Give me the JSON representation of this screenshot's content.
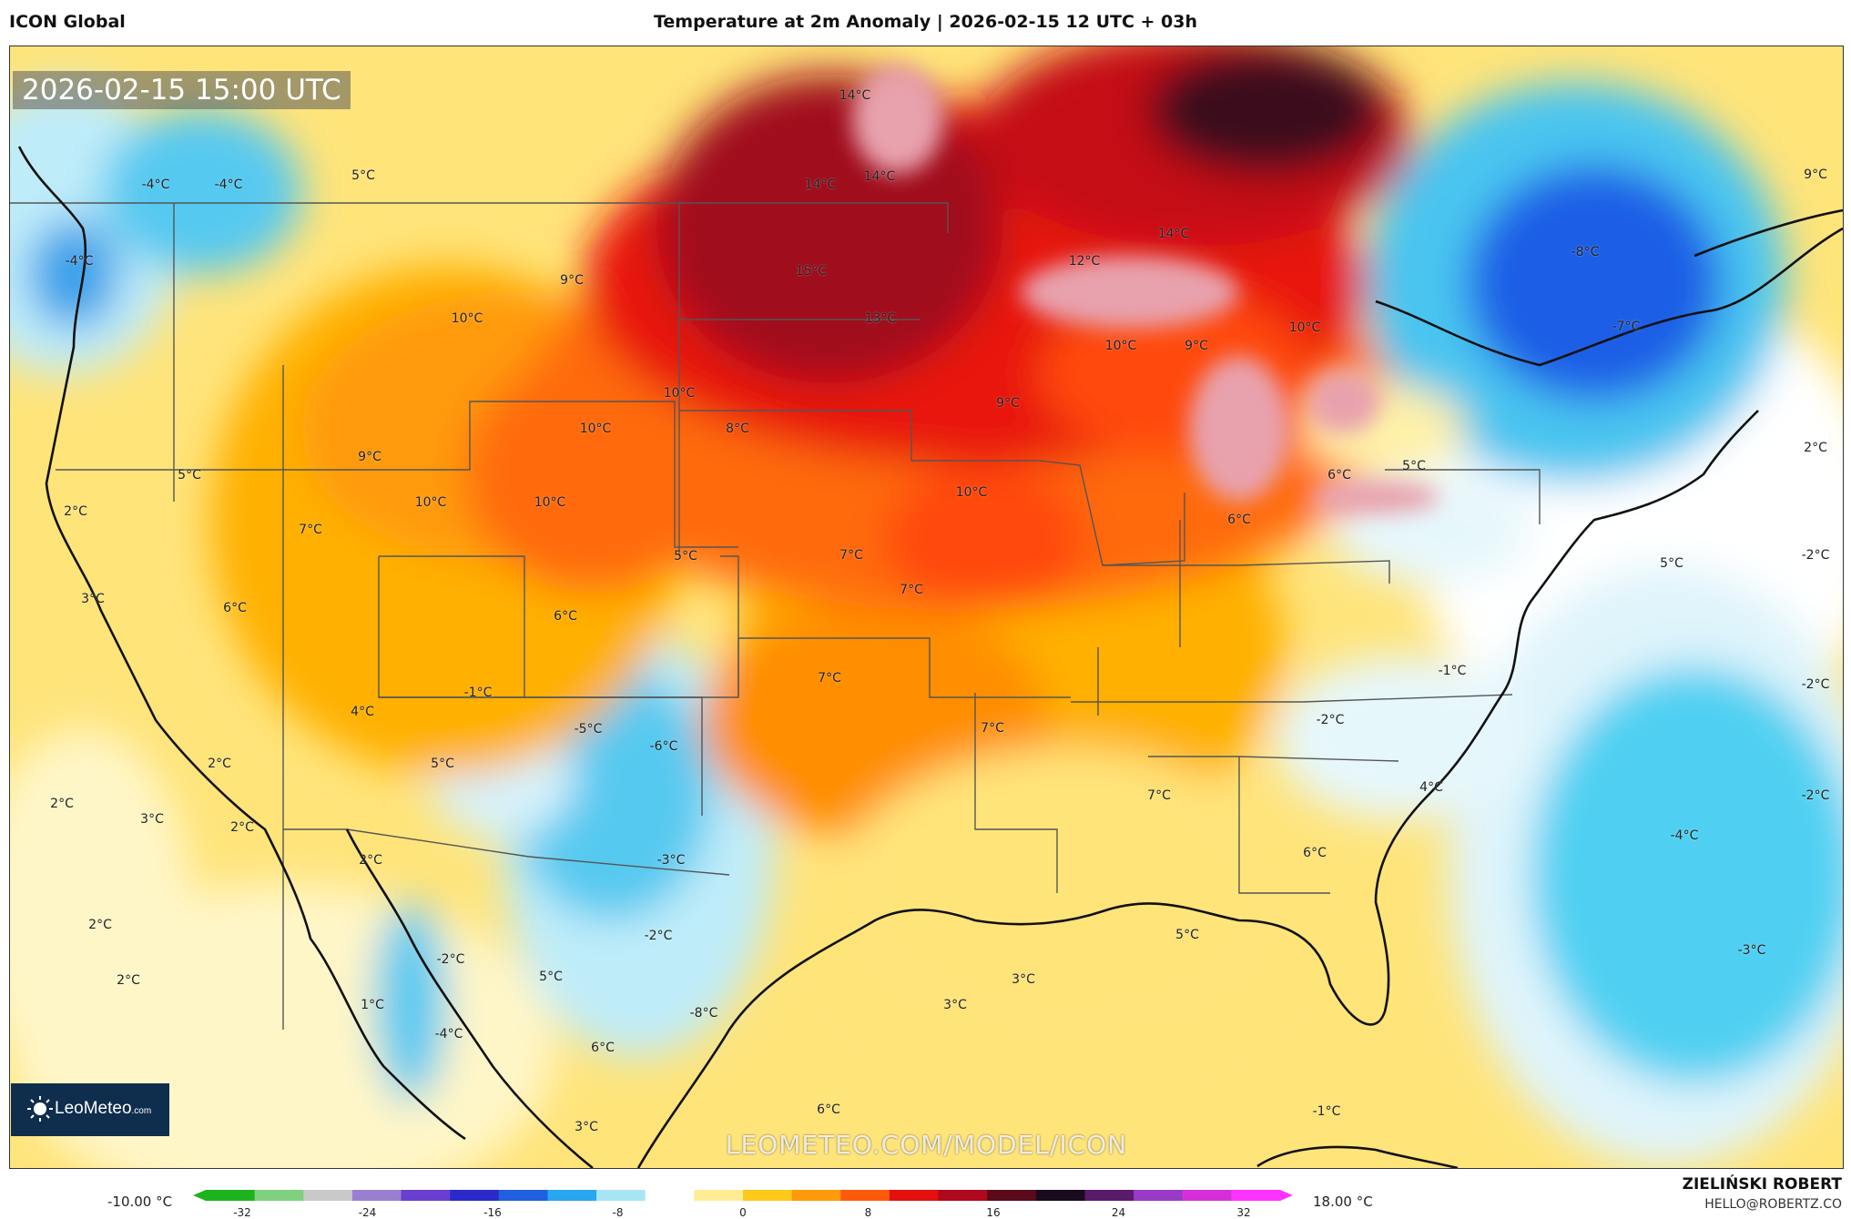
{
  "header": {
    "model": "ICON Global",
    "title": "Temperature at 2m Anomaly | 2026-02-15 12 UTC + 03h"
  },
  "map": {
    "valid_time": "2026-02-15 15:00 UTC",
    "watermark": "LEOMETEO.COM/MODEL/ICON",
    "brand": {
      "name": "LeoMeteo",
      "domain": ".com"
    },
    "labels": [
      {
        "text": "-4°C"
      },
      {
        "text": "-4°C"
      },
      {
        "text": "5°C"
      },
      {
        "text": "14°C"
      },
      {
        "text": "14°C"
      },
      {
        "text": "14°C"
      },
      {
        "text": "-4°C"
      },
      {
        "text": "9°C"
      },
      {
        "text": "15°C"
      },
      {
        "text": "14°C"
      },
      {
        "text": "12°C"
      },
      {
        "text": "-8°C"
      },
      {
        "text": "9°C"
      },
      {
        "text": "10°C"
      },
      {
        "text": "13°C"
      },
      {
        "text": "10°C"
      },
      {
        "text": "9°C"
      },
      {
        "text": "10°C"
      },
      {
        "text": "-7°C"
      },
      {
        "text": "10°C"
      },
      {
        "text": "9°C"
      },
      {
        "text": "10°C"
      },
      {
        "text": "8°C"
      },
      {
        "text": "5°C"
      },
      {
        "text": "6°C"
      },
      {
        "text": "2°C"
      },
      {
        "text": "9°C"
      },
      {
        "text": "5°C"
      },
      {
        "text": "10°C"
      },
      {
        "text": "10°C"
      },
      {
        "text": "10°C"
      },
      {
        "text": "6°C"
      },
      {
        "text": "2°C"
      },
      {
        "text": "7°C"
      },
      {
        "text": "5°C"
      },
      {
        "text": "7°C"
      },
      {
        "text": "7°C"
      },
      {
        "text": "5°C"
      },
      {
        "text": "-2°C"
      },
      {
        "text": "3°C"
      },
      {
        "text": "6°C"
      },
      {
        "text": "6°C"
      },
      {
        "text": "-1°C"
      },
      {
        "text": "7°C"
      },
      {
        "text": "-2°C"
      },
      {
        "text": "-1°C"
      },
      {
        "text": "-2°C"
      },
      {
        "text": "4°C"
      },
      {
        "text": "-5°C"
      },
      {
        "text": "-6°C"
      },
      {
        "text": "7°C"
      },
      {
        "text": "2°C"
      },
      {
        "text": "5°C"
      },
      {
        "text": "7°C"
      },
      {
        "text": "4°C"
      },
      {
        "text": "2°C"
      },
      {
        "text": "3°C"
      },
      {
        "text": "2°C"
      },
      {
        "text": "-2°C"
      },
      {
        "text": "-4°C"
      },
      {
        "text": "2°C"
      },
      {
        "text": "-3°C"
      },
      {
        "text": "6°C"
      },
      {
        "text": "2°C"
      },
      {
        "text": "-2°C"
      },
      {
        "text": "5°C"
      },
      {
        "text": "-3°C"
      },
      {
        "text": "2°C"
      },
      {
        "text": "-2°C"
      },
      {
        "text": "5°C"
      },
      {
        "text": "1°C"
      },
      {
        "text": "3°C"
      },
      {
        "text": "3°C"
      },
      {
        "text": "-4°C"
      },
      {
        "text": "-8°C"
      },
      {
        "text": "6°C"
      },
      {
        "text": "3°C"
      },
      {
        "text": "6°C"
      },
      {
        "text": "-1°C"
      }
    ]
  },
  "colorbar": {
    "min_label": "-10.00 °C",
    "max_label": "18.00 °C",
    "ticks": [
      "-32",
      "-24",
      "-16",
      "-8",
      "0",
      "8",
      "16",
      "24",
      "32"
    ],
    "colors": [
      "#1db31d",
      "#7fd07f",
      "#c9c9c9",
      "#9a7fd0",
      "#6a3fd0",
      "#2a2acb",
      "#1f5fe0",
      "#29a6f0",
      "#a8e6f6",
      "#ffffff",
      "#ffec94",
      "#ffc91a",
      "#ff9a0a",
      "#ff5a0a",
      "#e3100e",
      "#b0081c",
      "#5a0a1a",
      "#1a0a1e",
      "#5a1a6a",
      "#9a3ac8",
      "#d72fd8",
      "#ff33ff"
    ]
  },
  "footer": {
    "author": "ZIELIŃSKI ROBERT",
    "email": "HELLO@ROBERTZ.CO"
  },
  "colors": {
    "cold_strong": "#1c5fe6",
    "cold": "#2ec2ee",
    "cold_light": "#bfecf9",
    "neutral": "#ffffff",
    "warm_light": "#ffe47a",
    "warm": "#ffb000",
    "hot": "#ff6a0a",
    "very_hot": "#e8180e",
    "extreme": "#a0081c",
    "lake": "#e8a2ad"
  }
}
